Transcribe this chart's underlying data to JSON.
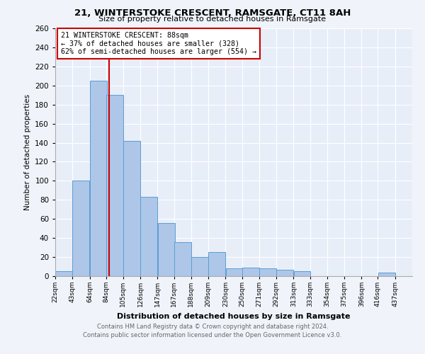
{
  "title_real": "21, WINTERSTOKE CRESCENT, RAMSGATE, CT11 8AH",
  "subtitle": "Size of property relative to detached houses in Ramsgate",
  "xlabel": "Distribution of detached houses by size in Ramsgate",
  "ylabel": "Number of detached properties",
  "bins": [
    "22sqm",
    "43sqm",
    "64sqm",
    "84sqm",
    "105sqm",
    "126sqm",
    "147sqm",
    "167sqm",
    "188sqm",
    "209sqm",
    "230sqm",
    "250sqm",
    "271sqm",
    "292sqm",
    "313sqm",
    "333sqm",
    "354sqm",
    "375sqm",
    "396sqm",
    "416sqm",
    "437sqm"
  ],
  "bin_edges": [
    22,
    43,
    64,
    84,
    105,
    126,
    147,
    167,
    188,
    209,
    230,
    250,
    271,
    292,
    313,
    333,
    354,
    375,
    396,
    416,
    437
  ],
  "values": [
    5,
    100,
    205,
    190,
    142,
    83,
    56,
    36,
    20,
    25,
    8,
    9,
    8,
    7,
    5,
    0,
    0,
    0,
    0,
    4
  ],
  "bar_color": "#aec6e8",
  "bar_edge_color": "#5a9fd4",
  "property_line_x": 88,
  "property_line_color": "#cc0000",
  "ylim": [
    0,
    260
  ],
  "yticks": [
    0,
    20,
    40,
    60,
    80,
    100,
    120,
    140,
    160,
    180,
    200,
    220,
    240,
    260
  ],
  "annotation_title": "21 WINTERSTOKE CRESCENT: 88sqm",
  "annotation_line1": "← 37% of detached houses are smaller (328)",
  "annotation_line2": "62% of semi-detached houses are larger (554) →",
  "annotation_box_color": "#cc0000",
  "footer1": "Contains HM Land Registry data © Crown copyright and database right 2024.",
  "footer2": "Contains public sector information licensed under the Open Government Licence v3.0.",
  "background_color": "#f0f4fa",
  "plot_bg_color": "#e8eef8"
}
